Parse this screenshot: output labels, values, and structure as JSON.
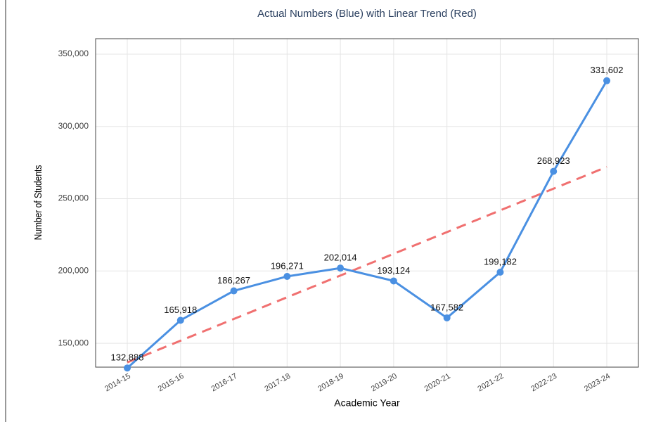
{
  "chart_data": {
    "type": "line",
    "title": "Actual Numbers (Blue) with Linear Trend (Red)",
    "x_label": "Academic Year",
    "y_label": "Number of Students",
    "categories": [
      "2014-15",
      "2015-16",
      "2016-17",
      "2017-18",
      "2018-19",
      "2019-20",
      "2020-21",
      "2021-22",
      "2022-23",
      "2023-24"
    ],
    "series": [
      {
        "color": "#4a90e2",
        "style": "solid",
        "markers": true,
        "values": [
          132888,
          165918,
          186267,
          196271,
          202014,
          193124,
          167582,
          199182,
          268923,
          331602
        ],
        "value_labels": [
          "132,888",
          "165,918",
          "186,267",
          "196,271",
          "202,014",
          "193,124",
          "167,582",
          "199,182",
          "268,923",
          "331,602"
        ]
      },
      {
        "color": "#f07070",
        "style": "dashed",
        "markers": false,
        "values": [
          136766,
          151791,
          166815,
          181840,
          196865,
          211889,
          226914,
          241939,
          256963,
          271988
        ]
      }
    ],
    "ylim": [
      133500,
      360700
    ],
    "yticks": [
      {
        "value": 150000,
        "label": "150,000"
      },
      {
        "value": 200000,
        "label": "200,000"
      },
      {
        "value": 250000,
        "label": "250,000"
      },
      {
        "value": 300000,
        "label": "300,000"
      },
      {
        "value": 350000,
        "label": "350,000"
      }
    ],
    "grid": true
  }
}
